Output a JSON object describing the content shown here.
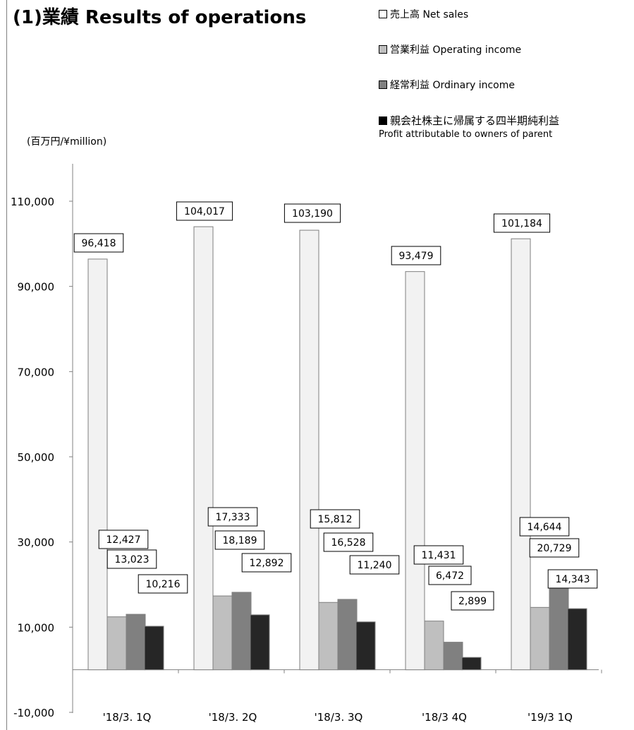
{
  "title": "(1)業績 Results of operations",
  "unit_label": "(百万円/¥million)",
  "legend": [
    {
      "label": "売上高 Net sales",
      "color": "#f2f2f2"
    },
    {
      "label": "営業利益 Operating income",
      "color": "#bfbfbf"
    },
    {
      "label": "経常利益 Ordinary income",
      "color": "#808080"
    },
    {
      "label": "親会社株主に帰属する四半期純利益",
      "sublabel": "Profit attributable to owners of parent",
      "color": "#262626"
    }
  ],
  "chart_data": {
    "type": "bar",
    "title": "(1)業績 Results of operations",
    "ylabel": "(百万円/¥million)",
    "categories": [
      "'18/3. 1Q",
      "'18/3. 2Q",
      "'18/3. 3Q",
      "'18/3 4Q",
      "'19/3 1Q"
    ],
    "ylim": [
      -10000,
      110000
    ],
    "yticks": [
      -10000,
      10000,
      30000,
      50000,
      70000,
      90000,
      110000
    ],
    "ytick_labels": [
      "-10,000",
      "10,000",
      "30,000",
      "50,000",
      "70,000",
      "90,000",
      "110,000"
    ],
    "grid": false,
    "legend_position": "top-right",
    "series": [
      {
        "name": "売上高 Net sales",
        "color": "#f2f2f2",
        "values": [
          96418,
          104017,
          103190,
          93479,
          101184
        ],
        "labels": [
          "96,418",
          "104,017",
          "103,190",
          "93,479",
          "101,184"
        ]
      },
      {
        "name": "営業利益 Operating income",
        "color": "#bfbfbf",
        "values": [
          12427,
          17333,
          15812,
          11431,
          14644
        ],
        "labels": [
          "12,427",
          "17,333",
          "15,812",
          "11,431",
          "14,644"
        ]
      },
      {
        "name": "経常利益 Ordinary income",
        "color": "#808080",
        "values": [
          13023,
          18189,
          16528,
          6472,
          20729
        ],
        "labels": [
          "13,023",
          "18,189",
          "16,528",
          "6,472",
          "20,729"
        ]
      },
      {
        "name": "親会社株主に帰属する四半期純利益",
        "color": "#262626",
        "values": [
          10216,
          12892,
          11240,
          2899,
          14343
        ],
        "labels": [
          "10,216",
          "12,892",
          "11,240",
          "2,899",
          "14,343"
        ]
      }
    ]
  }
}
